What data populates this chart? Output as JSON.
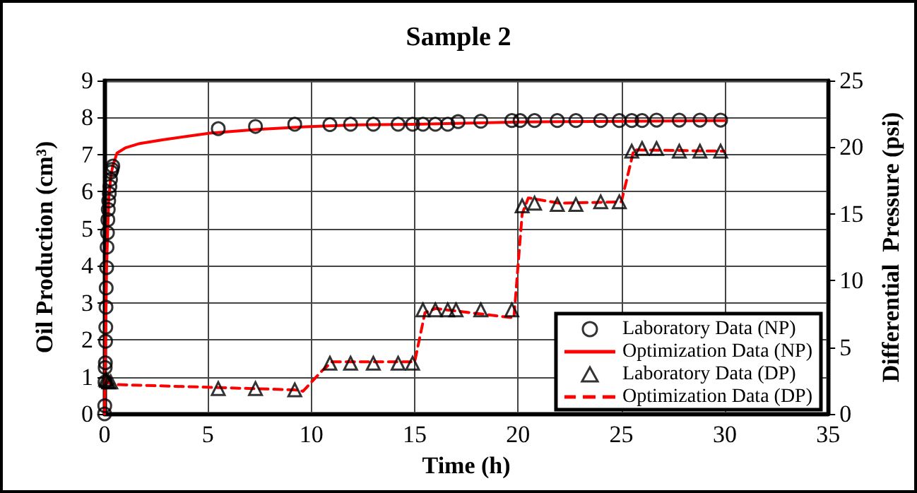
{
  "chart_data": {
    "type": "scatter",
    "title": "Sample 2",
    "xlabel": "Time (h)",
    "ylabel": "Oil Production (cm³)",
    "y2label": "Differential  Pressure (psi)",
    "xlim": [
      0,
      35
    ],
    "xticks": [
      0,
      5,
      10,
      15,
      20,
      25,
      30,
      35
    ],
    "ylim": [
      0,
      9
    ],
    "yticks": [
      0,
      1,
      2,
      3,
      4,
      5,
      6,
      7,
      8,
      9
    ],
    "y2lim": [
      0,
      25
    ],
    "y2ticks": [
      0,
      5,
      10,
      15,
      20,
      25
    ],
    "grid": true,
    "legend": "bottom right",
    "series": [
      {
        "name": "Laboratory Data (NP)",
        "type": "scatter",
        "marker": "circle",
        "color": "#000000",
        "x": [
          0,
          0.01,
          0.02,
          0.03,
          0.04,
          0.05,
          0.06,
          0.07,
          0.08,
          0.1,
          0.12,
          0.14,
          0.16,
          0.18,
          0.2,
          0.23,
          0.26,
          0.29,
          0.32,
          0.36,
          0.4,
          5.5,
          7.3,
          9.2,
          10.9,
          11.9,
          13.0,
          14.2,
          14.9,
          15.4,
          16.0,
          16.6,
          17.1,
          18.2,
          19.7,
          20.1,
          20.8,
          21.9,
          22.8,
          24.0,
          24.9,
          25.5,
          26.0,
          26.7,
          27.8,
          28.8,
          29.8
        ],
        "values": [
          0,
          0.22,
          0.86,
          1.25,
          1.38,
          1.96,
          2.34,
          2.88,
          3.4,
          3.95,
          4.5,
          4.89,
          5.24,
          5.52,
          5.75,
          5.95,
          6.14,
          6.33,
          6.53,
          6.6,
          6.69,
          7.7,
          7.76,
          7.82,
          7.81,
          7.82,
          7.82,
          7.82,
          7.82,
          7.82,
          7.82,
          7.82,
          7.89,
          7.9,
          7.92,
          7.92,
          7.92,
          7.92,
          7.92,
          7.92,
          7.92,
          7.92,
          7.92,
          7.93,
          7.93,
          7.93,
          7.93
        ]
      },
      {
        "name": "Optimization Data (NP)",
        "type": "line",
        "line_style": "solid",
        "color": "#ff0000",
        "x": [
          0,
          0.1,
          0.2,
          0.3,
          0.4,
          0.6,
          1.0,
          1.7,
          2.8,
          5.1,
          7.4,
          9.7,
          12,
          15,
          20,
          25,
          30
        ],
        "values": [
          0,
          4.0,
          5.8,
          6.4,
          6.7,
          7.04,
          7.18,
          7.3,
          7.4,
          7.58,
          7.68,
          7.75,
          7.8,
          7.82,
          7.88,
          7.9,
          7.92
        ]
      },
      {
        "name": "Laboratory Data (DP)",
        "type": "scatter",
        "marker": "triangle",
        "color": "#000000",
        "axis": "y2",
        "x": [
          0.05,
          0.1,
          0.2,
          0.3,
          5.5,
          7.3,
          9.2,
          10.9,
          11.9,
          13.0,
          14.2,
          14.9,
          15.4,
          16.0,
          16.6,
          17.0,
          18.2,
          19.7,
          20.2,
          20.8,
          21.9,
          22.8,
          24.0,
          24.9,
          25.5,
          26.0,
          26.7,
          27.8,
          28.8,
          29.8
        ],
        "values": [
          2.6,
          2.5,
          2.4,
          2.4,
          1.9,
          1.9,
          1.8,
          3.8,
          3.8,
          3.8,
          3.8,
          3.8,
          7.8,
          7.8,
          7.8,
          7.8,
          7.8,
          7.8,
          15.6,
          15.8,
          15.7,
          15.7,
          15.9,
          15.9,
          19.7,
          19.9,
          19.9,
          19.7,
          19.7,
          19.7
        ]
      },
      {
        "name": "Optimization Data (DP)",
        "type": "line",
        "line_style": "dashed",
        "color": "#ff0000",
        "axis": "y2",
        "x": [
          0,
          0.5,
          5,
          9.2,
          9.6,
          10.5,
          11,
          15,
          15.5,
          16,
          19.8,
          20.2,
          20.5,
          22,
          25,
          25.6,
          30
        ],
        "values": [
          2.4,
          2.2,
          2.0,
          1.8,
          1.7,
          3.2,
          3.9,
          3.9,
          7.6,
          7.9,
          7.2,
          15.0,
          16.2,
          15.8,
          15.9,
          19.8,
          19.7
        ]
      }
    ]
  }
}
